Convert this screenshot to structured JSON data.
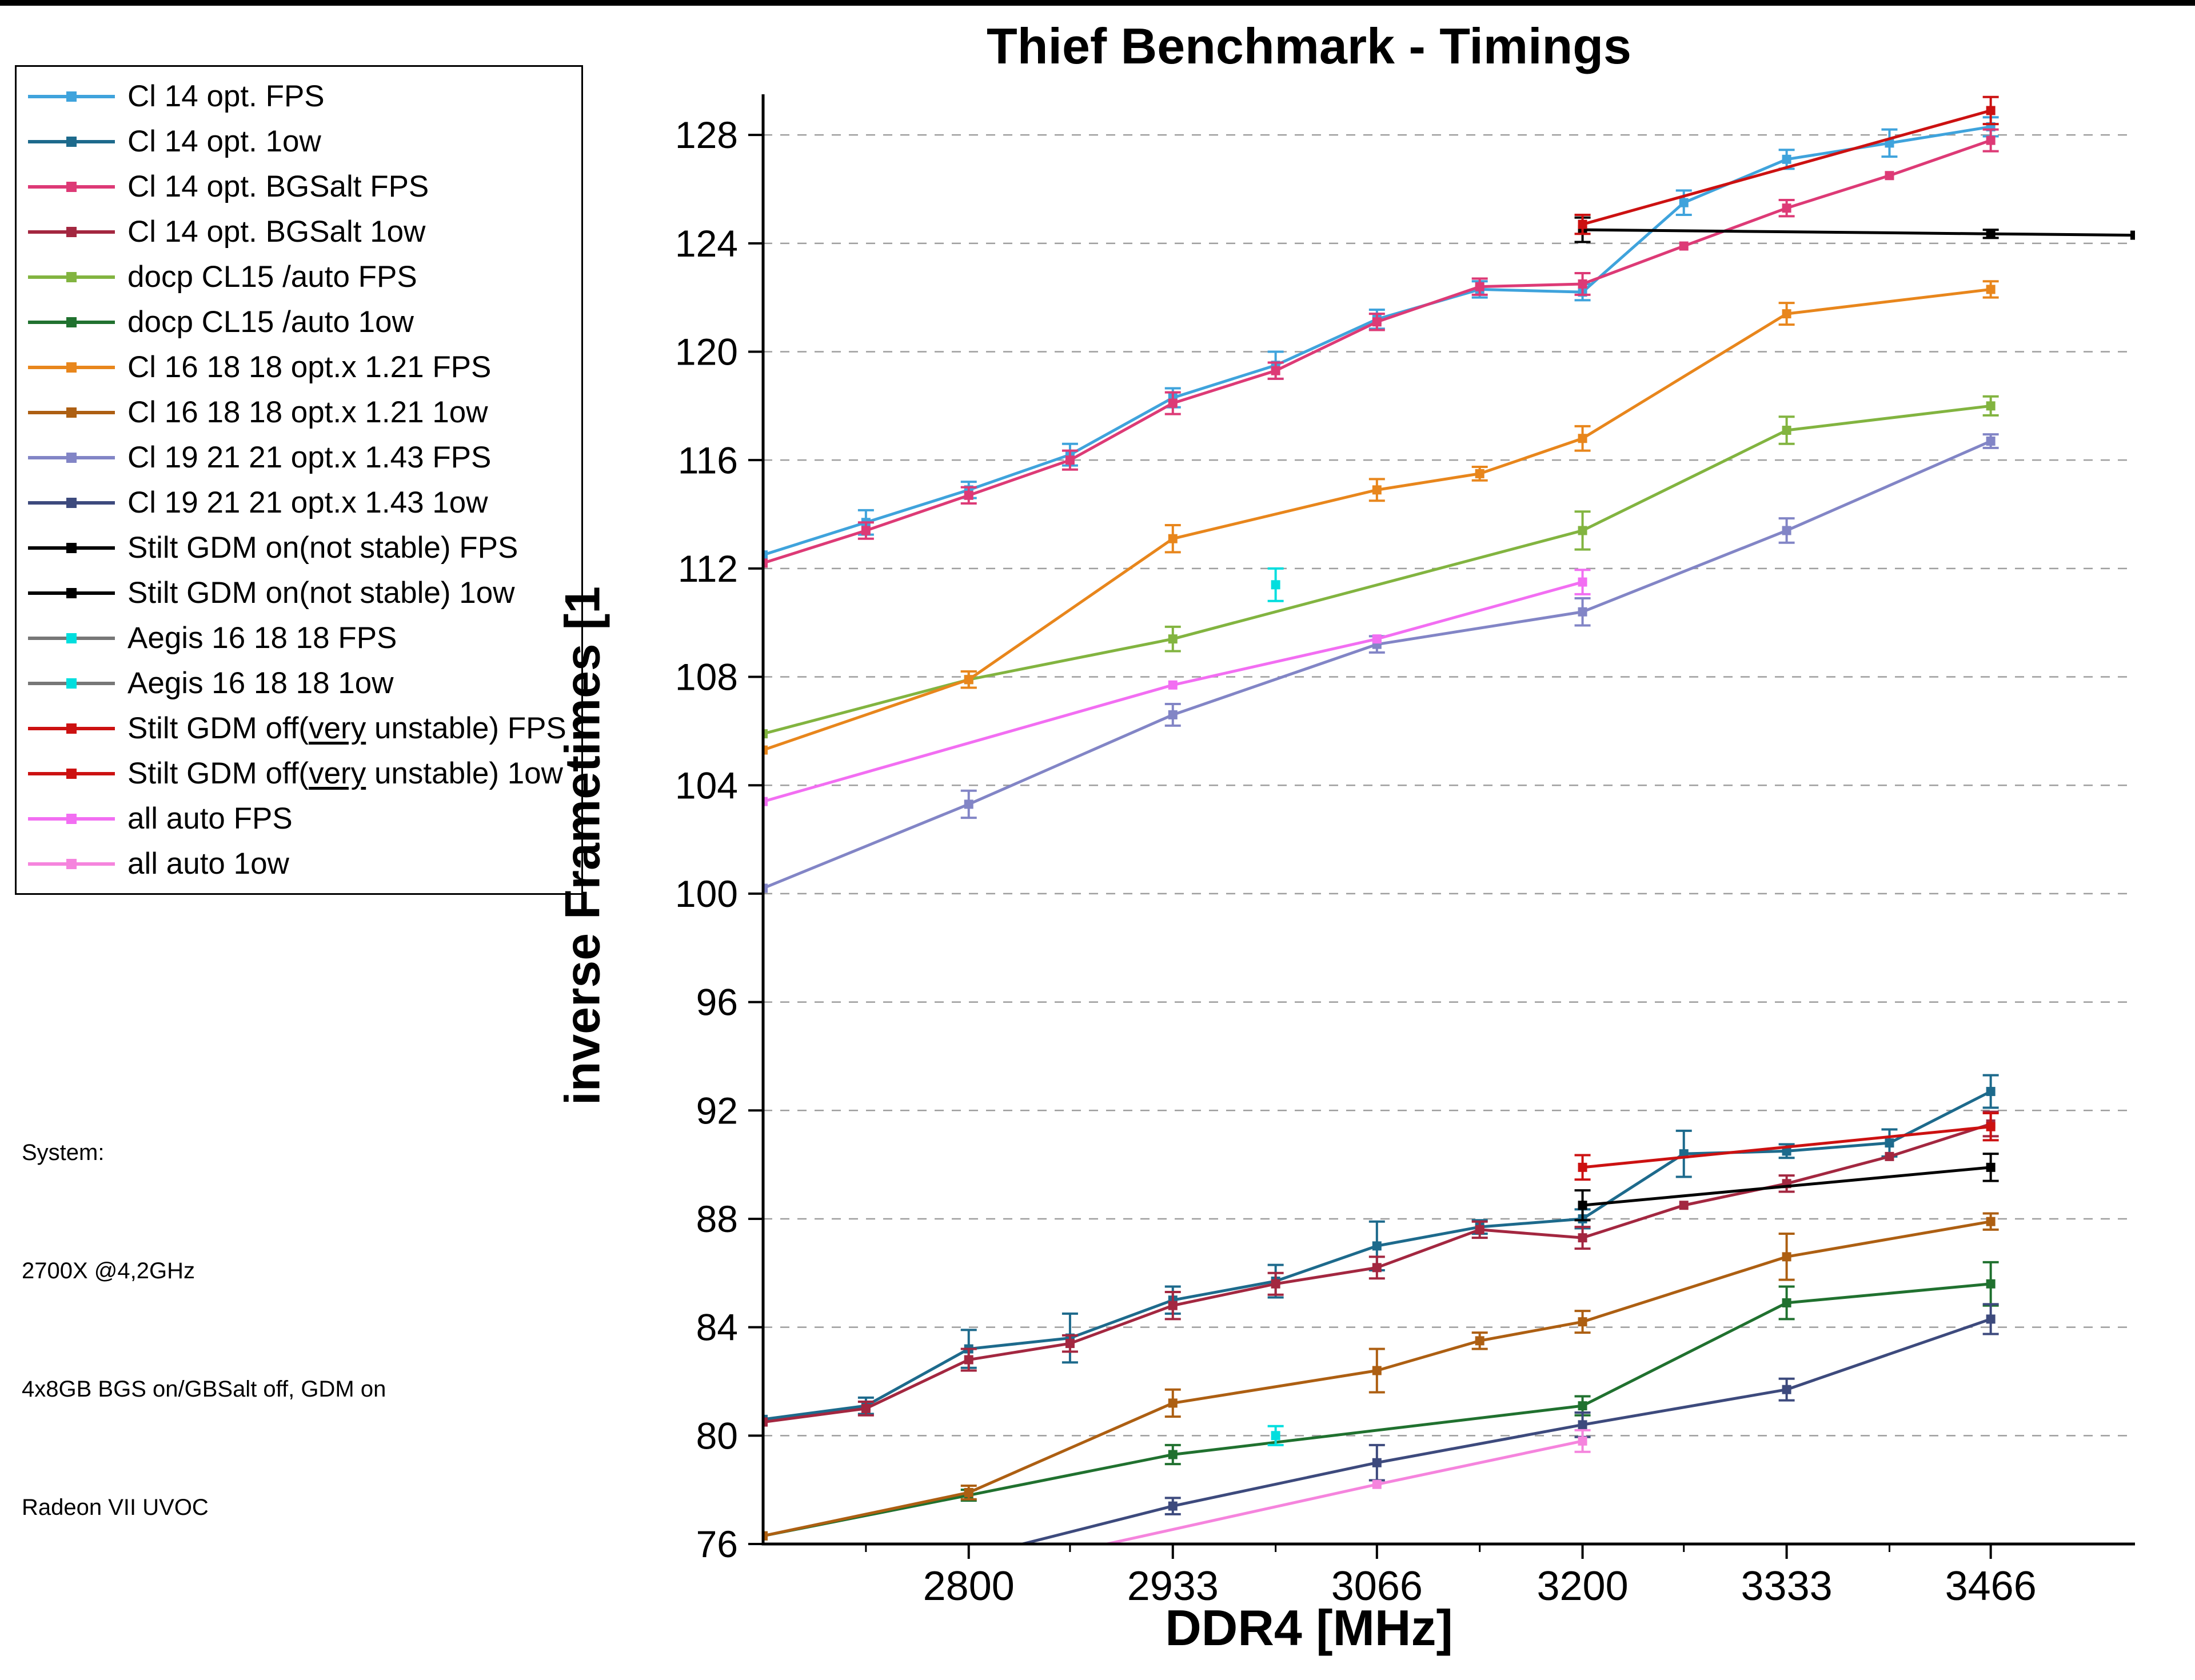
{
  "system_info": {
    "lines": [
      "System:",
      "2700X @4,2GHz",
      "4x8GB BGS on/GBSalt off, GDM on",
      "Radeon VII UVOC"
    ]
  },
  "chart_data": {
    "type": "line",
    "title": "Thief Benchmark - Timings",
    "xlabel": "DDR4 [MHz]",
    "ylabel": "inverse Frametimes [1",
    "xlim": [
      2666,
      3560
    ],
    "ylim": [
      76,
      129.5
    ],
    "xticks": [
      2800,
      2933,
      3066,
      3200,
      3333,
      3466
    ],
    "xminorticks": [
      2733,
      2866,
      3000,
      3133,
      3266,
      3400
    ],
    "yticks": [
      76,
      80,
      84,
      88,
      92,
      96,
      100,
      104,
      108,
      112,
      116,
      120,
      124,
      128
    ],
    "grid": {
      "horizontal_dashed": true,
      "color": "#9e9e9e"
    },
    "legend_position": "outside-top-left",
    "error_bars": true,
    "series": [
      {
        "name": "Cl 14 opt. FPS",
        "color": "#3fa3dc",
        "x": [
          2666,
          2733,
          2800,
          2866,
          2933,
          3000,
          3066,
          3133,
          3200,
          3266,
          3333,
          3400,
          3466
        ],
        "y": [
          112.5,
          113.7,
          114.9,
          116.2,
          118.3,
          119.5,
          121.2,
          122.3,
          122.2,
          125.5,
          127.1,
          127.7,
          128.3
        ],
        "err": [
          0,
          0.45,
          0.3,
          0.4,
          0.35,
          0.5,
          0.35,
          0.3,
          0.3,
          0.45,
          0.35,
          0.5,
          0.35
        ]
      },
      {
        "name": "Cl 14 opt. 1ow",
        "color": "#1d6a8c",
        "x": [
          2666,
          2733,
          2800,
          2866,
          2933,
          3000,
          3066,
          3133,
          3200,
          3266,
          3333,
          3400,
          3466
        ],
        "y": [
          80.6,
          81.1,
          83.2,
          83.6,
          85.0,
          85.7,
          87.0,
          87.7,
          88.0,
          90.4,
          90.5,
          90.8,
          92.7
        ],
        "err": [
          0,
          0.3,
          0.7,
          0.9,
          0.5,
          0.6,
          0.9,
          0.25,
          0.35,
          0.85,
          0.25,
          0.5,
          0.6
        ]
      },
      {
        "name": "Cl 14 opt. BGSalt FPS",
        "color": "#dd3a76",
        "x": [
          2666,
          2733,
          2800,
          2866,
          2933,
          3000,
          3066,
          3133,
          3200,
          3266,
          3333,
          3400,
          3466
        ],
        "y": [
          112.2,
          113.4,
          114.7,
          116.0,
          118.1,
          119.3,
          121.1,
          122.4,
          122.5,
          123.9,
          125.3,
          126.5,
          127.8
        ],
        "err": [
          0,
          0.3,
          0.3,
          0.35,
          0.4,
          0.3,
          0.3,
          0.3,
          0.4,
          0,
          0.3,
          0,
          0.4
        ]
      },
      {
        "name": "Cl 14 opt. BGSalt 1ow",
        "color": "#a32740",
        "x": [
          2666,
          2733,
          2800,
          2866,
          2933,
          3000,
          3066,
          3133,
          3200,
          3266,
          3333,
          3400,
          3466
        ],
        "y": [
          80.5,
          81.0,
          82.8,
          83.4,
          84.8,
          85.6,
          86.2,
          87.6,
          87.3,
          88.5,
          89.3,
          90.3,
          91.5
        ],
        "err": [
          0,
          0.25,
          0.4,
          0.3,
          0.5,
          0.4,
          0.4,
          0.3,
          0.4,
          0,
          0.3,
          0,
          0.45
        ]
      },
      {
        "name": "docp CL15 /auto FPS",
        "color": "#82b440",
        "x": [
          2666,
          2800,
          2933,
          3200,
          3333,
          3466
        ],
        "y": [
          105.9,
          107.9,
          109.4,
          113.4,
          117.1,
          118.0
        ],
        "err": [
          0,
          0.3,
          0.45,
          0.7,
          0.5,
          0.35
        ]
      },
      {
        "name": "docp CL15 /auto 1ow",
        "color": "#20712f",
        "x": [
          2666,
          2800,
          2933,
          3200,
          3333,
          3466
        ],
        "y": [
          76.3,
          77.8,
          79.3,
          81.1,
          84.9,
          85.6
        ],
        "err": [
          0,
          0.2,
          0.35,
          0.35,
          0.6,
          0.8
        ]
      },
      {
        "name": "Cl 16 18 18 opt.x 1.21 FPS",
        "color": "#e8861c",
        "x": [
          2666,
          2800,
          2933,
          3066,
          3133,
          3200,
          3333,
          3466
        ],
        "y": [
          105.3,
          107.9,
          113.1,
          114.9,
          115.5,
          116.8,
          121.4,
          122.3
        ],
        "err": [
          0,
          0.3,
          0.5,
          0.4,
          0.25,
          0.45,
          0.4,
          0.3
        ]
      },
      {
        "name": "Cl 16 18 18 opt.x 1.21 1ow",
        "color": "#ad5f12",
        "x": [
          2666,
          2800,
          2933,
          3066,
          3133,
          3200,
          3333,
          3466
        ],
        "y": [
          76.3,
          77.9,
          81.2,
          82.4,
          83.5,
          84.2,
          86.6,
          87.9
        ],
        "err": [
          0,
          0.25,
          0.5,
          0.8,
          0.3,
          0.4,
          0.85,
          0.3
        ]
      },
      {
        "name": "Cl 19 21 21 opt.x 1.43 FPS",
        "color": "#8285c6",
        "x": [
          2666,
          2800,
          2933,
          3066,
          3200,
          3333,
          3466
        ],
        "y": [
          100.2,
          103.3,
          106.6,
          109.2,
          110.4,
          113.4,
          116.7
        ],
        "err": [
          0,
          0.5,
          0.4,
          0.3,
          0.5,
          0.45,
          0.25
        ]
      },
      {
        "name": "Cl 19 21 21 opt.x 1.43 1ow",
        "color": "#3d4a7d",
        "x": [
          2800,
          2933,
          3066,
          3200,
          3333,
          3466
        ],
        "y": [
          75.5,
          77.4,
          79.0,
          80.4,
          81.7,
          84.3
        ],
        "err": [
          0,
          0.3,
          0.65,
          0.45,
          0.4,
          0.55
        ]
      },
      {
        "name": "Stilt GDM on(not stable) FPS",
        "color": "#000000",
        "x": [
          3200,
          3466,
          3560
        ],
        "y": [
          124.5,
          124.35,
          124.3
        ],
        "err": [
          0.45,
          0.15,
          0
        ]
      },
      {
        "name": "Stilt GDM on(not stable) 1ow",
        "color": "#000000",
        "x": [
          3200,
          3466
        ],
        "y": [
          88.5,
          89.9
        ],
        "err": [
          0.55,
          0.5
        ]
      },
      {
        "name": "Aegis 16 18 18 FPS",
        "color": "#00dede",
        "legend_line_color": "#777777",
        "x": [
          3000
        ],
        "y": [
          111.4
        ],
        "err": [
          0.6
        ]
      },
      {
        "name": "Aegis 16 18 18 1ow",
        "color": "#00dede",
        "legend_line_color": "#777777",
        "x": [
          3000
        ],
        "y": [
          80.0
        ],
        "err": [
          0.35
        ]
      },
      {
        "name": "Stilt GDM off(very unstable) FPS",
        "underline": "very",
        "color": "#cc1111",
        "x": [
          3200,
          3466
        ],
        "y": [
          124.7,
          128.9
        ],
        "err": [
          0.35,
          0.5
        ]
      },
      {
        "name": "Stilt GDM off(very unstable) 1ow",
        "underline": "very",
        "color": "#cc1111",
        "x": [
          3200,
          3466
        ],
        "y": [
          89.9,
          91.4
        ],
        "err": [
          0.45,
          0.5
        ]
      },
      {
        "name": "all auto FPS",
        "color": "#f26ef2",
        "x": [
          2666,
          2933,
          3066,
          3200
        ],
        "y": [
          103.4,
          107.7,
          109.4,
          111.5
        ],
        "err": [
          0,
          0,
          0,
          0.45
        ]
      },
      {
        "name": "all auto 1ow",
        "color": "#f584dd",
        "x": [
          2866,
          3066,
          3200
        ],
        "y": [
          75.7,
          78.2,
          79.8
        ],
        "err": [
          0,
          0,
          0.4
        ]
      }
    ]
  }
}
